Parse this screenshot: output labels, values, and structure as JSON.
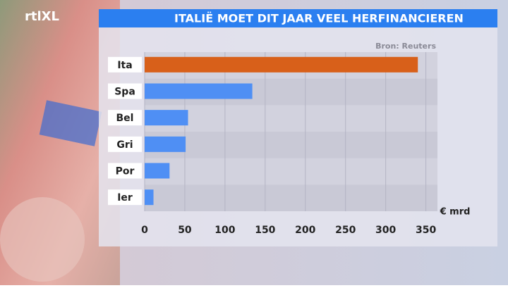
{
  "logo": "rtlXL",
  "chart_data": {
    "type": "barh",
    "title": "ITALIË MOET DIT JAAR VEEL HERFINANCIEREN",
    "source": "Bron: Reuters",
    "unit": "€ mrd",
    "categories": [
      "Ita",
      "Spa",
      "Bel",
      "Gri",
      "Por",
      "Ier"
    ],
    "values": [
      340,
      134,
      54,
      51,
      31,
      11
    ],
    "colors": [
      "#d8601a",
      "#4f8ff4",
      "#4f8ff4",
      "#4f8ff4",
      "#4f8ff4",
      "#4f8ff4"
    ],
    "xlim": [
      0,
      360
    ],
    "xticks": [
      0,
      50,
      100,
      150,
      200,
      250,
      300,
      350
    ],
    "grid": true
  }
}
